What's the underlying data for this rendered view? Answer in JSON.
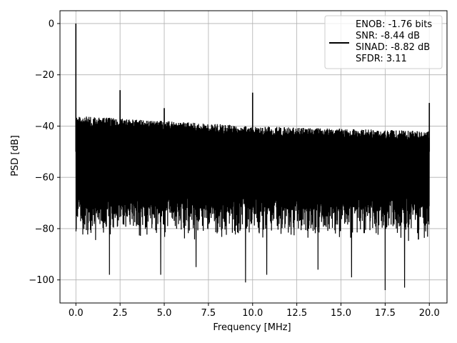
{
  "chart_data": {
    "type": "line",
    "title": "",
    "xlabel": "Frequency [MHz]",
    "ylabel": "PSD [dB]",
    "xlim": [
      -0.9,
      21.0
    ],
    "ylim": [
      -109,
      5
    ],
    "xticks": [
      0.0,
      2.5,
      5.0,
      7.5,
      10.0,
      12.5,
      15.0,
      17.5,
      20.0
    ],
    "xtick_labels": [
      "0.0",
      "2.5",
      "5.0",
      "7.5",
      "10.0",
      "12.5",
      "15.0",
      "17.5",
      "20.0"
    ],
    "yticks": [
      0,
      -20,
      -40,
      -60,
      -80,
      -100
    ],
    "ytick_labels": [
      "0",
      "−20",
      "−40",
      "−60",
      "−80",
      "−100"
    ],
    "grid": true,
    "legend_position": "top-right",
    "series": [
      {
        "name": "ENOB: -1.76 bits\nSNR: -8.44 dB\nSINAD: -8.82 dB\nSFDR: 3.11",
        "color": "#000000",
        "description": "dense noise floor spectrum",
        "noise_floor_top_db": [
          [
            0.0,
            -36
          ],
          [
            2.5,
            -37
          ],
          [
            5.0,
            -38
          ],
          [
            10.0,
            -40
          ],
          [
            15.0,
            -41
          ],
          [
            20.0,
            -42
          ]
        ],
        "noise_floor_bottom_db": [
          [
            0.0,
            -73
          ],
          [
            20.0,
            -73
          ]
        ],
        "spikes": [
          {
            "x": 0.0,
            "y": 0
          },
          {
            "x": 2.5,
            "y": -26
          },
          {
            "x": 5.0,
            "y": -33
          },
          {
            "x": 10.0,
            "y": -27
          },
          {
            "x": 20.0,
            "y": -31
          }
        ],
        "dips": [
          {
            "x": 1.9,
            "y": -98
          },
          {
            "x": 4.8,
            "y": -98
          },
          {
            "x": 6.8,
            "y": -95
          },
          {
            "x": 9.6,
            "y": -101
          },
          {
            "x": 10.8,
            "y": -98
          },
          {
            "x": 13.7,
            "y": -96
          },
          {
            "x": 15.6,
            "y": -99
          },
          {
            "x": 17.5,
            "y": -104
          },
          {
            "x": 18.6,
            "y": -103
          }
        ]
      }
    ]
  }
}
